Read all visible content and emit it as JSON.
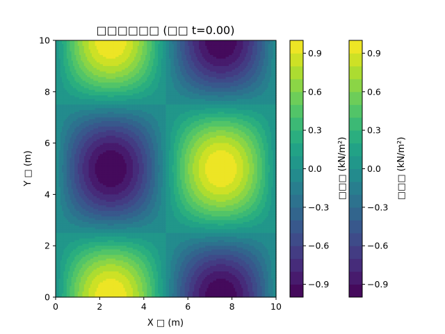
{
  "chart_data": {
    "type": "heatmap",
    "subtype": "filled-contour",
    "title": "□□□□□□ (□□ t=0.00)",
    "xlabel": "X □ (m)",
    "ylabel": "Y □ (m)",
    "xlim": [
      0,
      10
    ],
    "ylim": [
      0,
      10
    ],
    "xticks": [
      "0",
      "2",
      "4",
      "6",
      "8",
      "10"
    ],
    "yticks": [
      "0",
      "2",
      "4",
      "6",
      "8",
      "10"
    ],
    "function": "sin(2*pi*x/10) * cos(2*pi*y/10)",
    "value_range": [
      -1.0,
      1.0
    ],
    "levels": 20,
    "colormap": "viridis",
    "extrema": [
      {
        "x": 2.5,
        "y": 10,
        "value": 1.0
      },
      {
        "x": 7.5,
        "y": 10,
        "value": -1.0
      },
      {
        "x": 2.5,
        "y": 5,
        "value": -1.0
      },
      {
        "x": 7.5,
        "y": 5,
        "value": 1.0
      },
      {
        "x": 2.5,
        "y": 0,
        "value": 1.0
      },
      {
        "x": 7.5,
        "y": 0,
        "value": -1.0
      }
    ],
    "colorbars": [
      {
        "label": "□□□ (kN/m²)",
        "ticks": [
          "0.9",
          "0.6",
          "0.3",
          "0.0",
          "−0.3",
          "−0.6",
          "−0.9"
        ]
      },
      {
        "label": "□□□ (kN/m²)",
        "ticks": [
          "0.9",
          "0.6",
          "0.3",
          "0.0",
          "−0.3",
          "−0.6",
          "−0.9"
        ]
      }
    ],
    "grid": false
  }
}
